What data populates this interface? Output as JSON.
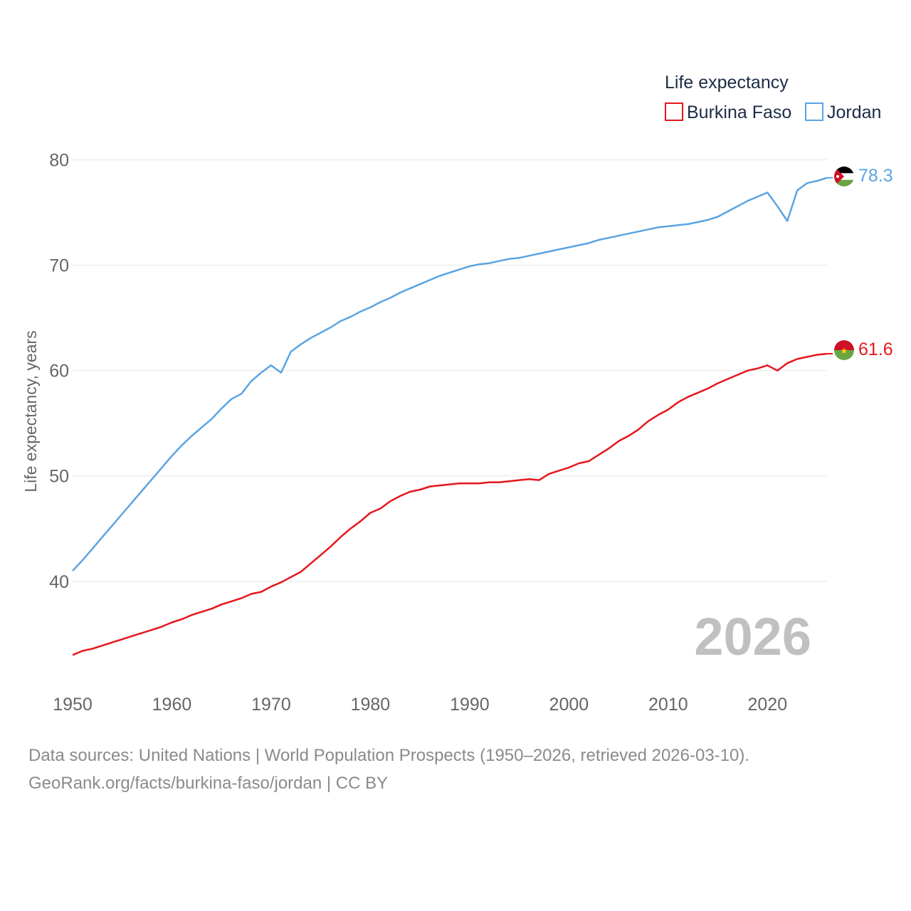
{
  "legend": {
    "title": "Life expectancy",
    "items": [
      {
        "name": "Burkina Faso",
        "color": "#e5161d"
      },
      {
        "name": "Jordan",
        "color": "#5aa4e3"
      }
    ]
  },
  "year_label": "2026",
  "source_line1": "Data sources: United Nations | World Population Prospects (1950–2026, retrieved 2026-03-10).",
  "source_line2": "GeoRank.org/facts/burkina-faso/jordan | CC BY",
  "chart_data": {
    "type": "line",
    "title": "",
    "xlabel": "",
    "ylabel": "Life expectancy, years",
    "xlim": [
      1950,
      2026
    ],
    "ylim": [
      31,
      82
    ],
    "x_ticks": [
      1950,
      1960,
      1970,
      1980,
      1990,
      2000,
      2010,
      2020
    ],
    "y_ticks": [
      40,
      50,
      60,
      70,
      80
    ],
    "grid": true,
    "legend_position": "top-right",
    "series": [
      {
        "name": "Burkina Faso",
        "color": "#e5161d",
        "end_label": "61.6",
        "x": [
          1950,
          1951,
          1952,
          1953,
          1954,
          1955,
          1956,
          1957,
          1958,
          1959,
          1960,
          1961,
          1962,
          1963,
          1964,
          1965,
          1966,
          1967,
          1968,
          1969,
          1970,
          1971,
          1972,
          1973,
          1974,
          1975,
          1976,
          1977,
          1978,
          1979,
          1980,
          1981,
          1982,
          1983,
          1984,
          1985,
          1986,
          1987,
          1988,
          1989,
          1990,
          1991,
          1992,
          1993,
          1994,
          1995,
          1996,
          1997,
          1998,
          1999,
          2000,
          2001,
          2002,
          2003,
          2004,
          2005,
          2006,
          2007,
          2008,
          2009,
          2010,
          2011,
          2012,
          2013,
          2014,
          2015,
          2016,
          2017,
          2018,
          2019,
          2020,
          2021,
          2022,
          2023,
          2024,
          2025,
          2026
        ],
        "values": [
          33.0,
          33.4,
          33.6,
          33.9,
          34.2,
          34.5,
          34.8,
          35.1,
          35.4,
          35.7,
          36.1,
          36.4,
          36.8,
          37.1,
          37.4,
          37.8,
          38.1,
          38.4,
          38.8,
          39.0,
          39.5,
          39.9,
          40.4,
          40.9,
          41.7,
          42.5,
          43.3,
          44.2,
          45.0,
          45.7,
          46.5,
          46.9,
          47.6,
          48.1,
          48.5,
          48.7,
          49.0,
          49.1,
          49.2,
          49.3,
          49.3,
          49.3,
          49.4,
          49.4,
          49.5,
          49.6,
          49.7,
          49.6,
          50.2,
          50.5,
          50.8,
          51.2,
          51.4,
          52.0,
          52.6,
          53.3,
          53.8,
          54.4,
          55.2,
          55.8,
          56.3,
          57.0,
          57.5,
          57.9,
          58.3,
          58.8,
          59.2,
          59.6,
          60.0,
          60.2,
          60.5,
          60.0,
          60.7,
          61.1,
          61.3,
          61.5,
          61.6
        ]
      },
      {
        "name": "Jordan",
        "color": "#5aa4e3",
        "end_label": "78.3",
        "x": [
          1950,
          1951,
          1952,
          1953,
          1954,
          1955,
          1956,
          1957,
          1958,
          1959,
          1960,
          1961,
          1962,
          1963,
          1964,
          1965,
          1966,
          1967,
          1968,
          1969,
          1970,
          1971,
          1972,
          1973,
          1974,
          1975,
          1976,
          1977,
          1978,
          1979,
          1980,
          1981,
          1982,
          1983,
          1984,
          1985,
          1986,
          1987,
          1988,
          1989,
          1990,
          1991,
          1992,
          1993,
          1994,
          1995,
          1996,
          1997,
          1998,
          1999,
          2000,
          2001,
          2002,
          2003,
          2004,
          2005,
          2006,
          2007,
          2008,
          2009,
          2010,
          2011,
          2012,
          2013,
          2014,
          2015,
          2016,
          2017,
          2018,
          2019,
          2020,
          2021,
          2022,
          2023,
          2024,
          2025,
          2026
        ],
        "values": [
          41.0,
          42.0,
          43.1,
          44.2,
          45.3,
          46.4,
          47.5,
          48.6,
          49.7,
          50.8,
          51.9,
          52.9,
          53.8,
          54.6,
          55.4,
          56.4,
          57.3,
          57.8,
          59.0,
          59.8,
          60.5,
          59.8,
          61.8,
          62.5,
          63.1,
          63.6,
          64.1,
          64.7,
          65.1,
          65.6,
          66.0,
          66.5,
          66.9,
          67.4,
          67.8,
          68.2,
          68.6,
          69.0,
          69.3,
          69.6,
          69.9,
          70.1,
          70.2,
          70.4,
          70.6,
          70.7,
          70.9,
          71.1,
          71.3,
          71.5,
          71.7,
          71.9,
          72.1,
          72.4,
          72.6,
          72.8,
          73.0,
          73.2,
          73.4,
          73.6,
          73.7,
          73.8,
          73.9,
          74.1,
          74.3,
          74.6,
          75.1,
          75.6,
          76.1,
          76.5,
          76.9,
          75.6,
          74.2,
          77.1,
          77.8,
          78.0,
          78.3
        ]
      }
    ]
  }
}
